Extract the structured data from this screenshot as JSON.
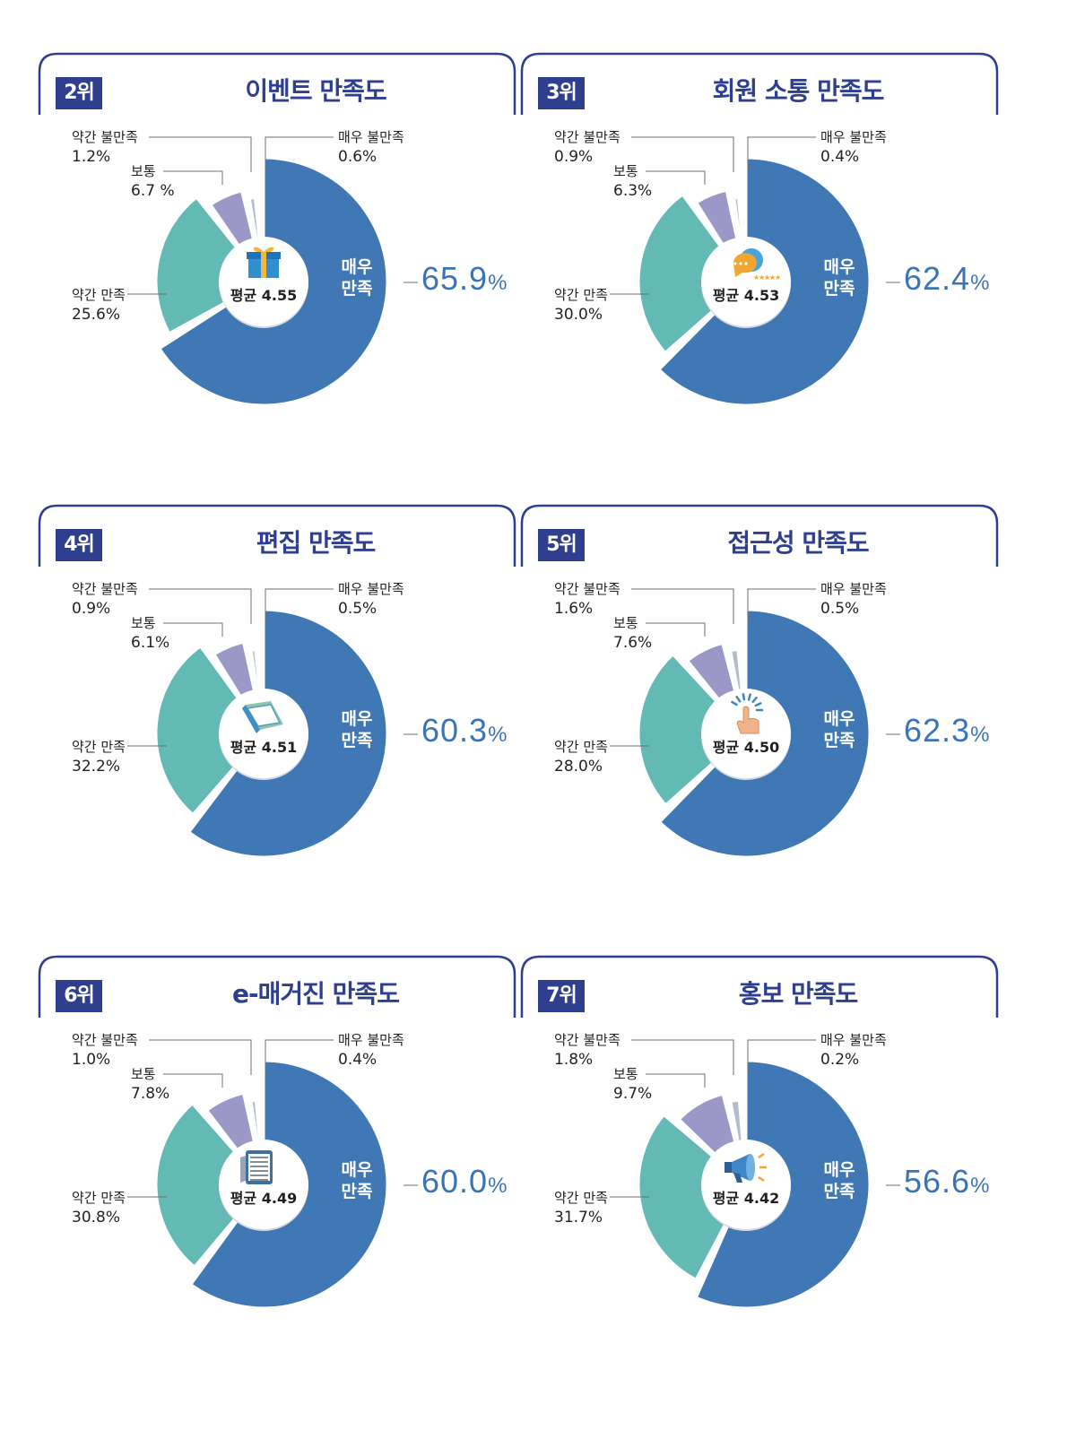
{
  "colors": {
    "very_satisfied": "#3f78b4",
    "somewhat_satisfied": "#63bab5",
    "neutral": "#9b97c6",
    "somewhat_dissatisfied": "#b2bccb",
    "very_dissatisfied": "#dcdfe6",
    "frame": "#2e3f8f",
    "highlight": "#3b74b4"
  },
  "labels": {
    "very_dissatisfied": "매우 불만족",
    "somewhat_dissatisfied": "약간 불만족",
    "neutral": "보통",
    "somewhat_satisfied": "약간 만족",
    "very_satisfied_line1": "매우",
    "very_satisfied_line2": "만족"
  },
  "chart_data": [
    {
      "type": "pie",
      "rank": "2위",
      "title": "이벤트 만족도",
      "average": "평균 4.55",
      "icon": "gift-icon",
      "categories": [
        "매우 만족",
        "약간 만족",
        "보통",
        "약간 불만족",
        "매우 불만족"
      ],
      "values": [
        65.9,
        25.6,
        6.7,
        1.2,
        0.6
      ],
      "value_labels": [
        "65.9",
        "25.6%",
        "6.7 %",
        "1.2%",
        "0.6%"
      ],
      "percent_sign": "%"
    },
    {
      "type": "pie",
      "rank": "3위",
      "title": "회원 소통 만족도",
      "average": "평균 4.53",
      "icon": "chat-bubbles-icon",
      "categories": [
        "매우 만족",
        "약간 만족",
        "보통",
        "약간 불만족",
        "매우 불만족"
      ],
      "values": [
        62.4,
        30.0,
        6.3,
        0.9,
        0.4
      ],
      "value_labels": [
        "62.4",
        "30.0%",
        "6.3%",
        "0.9%",
        "0.4%"
      ],
      "percent_sign": "%"
    },
    {
      "type": "pie",
      "rank": "4위",
      "title": "편집 만족도",
      "average": "평균 4.51",
      "icon": "book-icon",
      "categories": [
        "매우 만족",
        "약간 만족",
        "보통",
        "약간 불만족",
        "매우 불만족"
      ],
      "values": [
        60.3,
        32.2,
        6.1,
        0.9,
        0.5
      ],
      "value_labels": [
        "60.3",
        "32.2%",
        "6.1%",
        "0.9%",
        "0.5%"
      ],
      "percent_sign": "%"
    },
    {
      "type": "pie",
      "rank": "5위",
      "title": "접근성 만족도",
      "average": "평균 4.50",
      "icon": "tap-hand-icon",
      "categories": [
        "매우 만족",
        "약간 만족",
        "보통",
        "약간 불만족",
        "매우 불만족"
      ],
      "values": [
        62.3,
        28.0,
        7.6,
        1.6,
        0.5
      ],
      "value_labels": [
        "62.3",
        "28.0%",
        "7.6%",
        "1.6%",
        "0.5%"
      ],
      "percent_sign": "%"
    },
    {
      "type": "pie",
      "rank": "6위",
      "title": "e-매거진 만족도",
      "average": "평균 4.49",
      "icon": "tablet-magazine-icon",
      "categories": [
        "매우 만족",
        "약간 만족",
        "보통",
        "약간 불만족",
        "매우 불만족"
      ],
      "values": [
        60.0,
        30.8,
        7.8,
        1.0,
        0.4
      ],
      "value_labels": [
        "60.0",
        "30.8%",
        "7.8%",
        "1.0%",
        "0.4%"
      ],
      "percent_sign": "%"
    },
    {
      "type": "pie",
      "rank": "7위",
      "title": "홍보 만족도",
      "average": "평균 4.42",
      "icon": "megaphone-icon",
      "categories": [
        "매우 만족",
        "약간 만족",
        "보통",
        "약간 불만족",
        "매우 불만족"
      ],
      "values": [
        56.6,
        31.7,
        9.7,
        1.8,
        0.2
      ],
      "value_labels": [
        "56.6",
        "31.7%",
        "9.7%",
        "1.8%",
        "0.2%"
      ],
      "percent_sign": "%"
    }
  ]
}
